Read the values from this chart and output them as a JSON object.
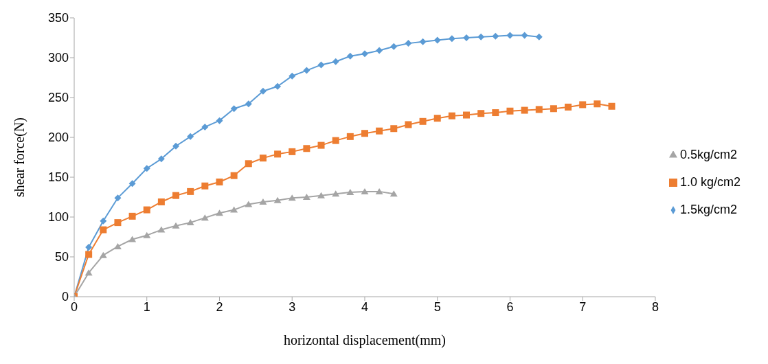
{
  "chart_data": {
    "type": "line",
    "xlabel": "horizontal displacement(mm)",
    "ylabel": "shear force(N)",
    "xlim": [
      0,
      8
    ],
    "xticks": [
      0,
      1,
      2,
      3,
      4,
      5,
      6,
      7,
      8
    ],
    "ylim": [
      0,
      350
    ],
    "yticks": [
      0,
      50,
      100,
      150,
      200,
      250,
      300,
      350
    ],
    "grid": false,
    "legend": "right",
    "series": [
      {
        "name": "1.5kg/cm2",
        "color": "#5b9bd5",
        "marker": "diamond",
        "x": [
          0,
          0.2,
          0.4,
          0.6,
          0.8,
          1,
          1.2,
          1.4,
          1.6,
          1.8,
          2,
          2.2,
          2.4,
          2.6,
          2.8,
          3,
          3.2,
          3.4,
          3.6,
          3.8,
          4,
          4.2,
          4.4,
          4.6,
          4.8,
          5,
          5.2,
          5.4,
          5.6,
          5.8,
          6,
          6.2,
          6.4
        ],
        "values": [
          0,
          62,
          95,
          124,
          142,
          161,
          173,
          189,
          201,
          213,
          221,
          236,
          242,
          258,
          264,
          277,
          284,
          291,
          295,
          302,
          305,
          309,
          314,
          318,
          320,
          322,
          324,
          325,
          326,
          327,
          328,
          328,
          326
        ]
      },
      {
        "name": "1.0 kg/cm2",
        "color": "#ed7d31",
        "marker": "square",
        "x": [
          0,
          0.2,
          0.4,
          0.6,
          0.8,
          1,
          1.2,
          1.4,
          1.6,
          1.8,
          2,
          2.2,
          2.4,
          2.6,
          2.8,
          3,
          3.2,
          3.4,
          3.6,
          3.8,
          4,
          4.2,
          4.4,
          4.6,
          4.8,
          5,
          5.2,
          5.4,
          5.6,
          5.8,
          6,
          6.2,
          6.4,
          6.6,
          6.8,
          7,
          7.2,
          7.4
        ],
        "values": [
          0,
          53,
          84,
          93,
          101,
          109,
          119,
          127,
          132,
          139,
          144,
          152,
          167,
          174,
          179,
          182,
          186,
          190,
          196,
          201,
          205,
          208,
          211,
          216,
          220,
          224,
          227,
          228,
          230,
          231,
          233,
          234,
          235,
          236,
          238,
          241,
          242,
          239
        ]
      },
      {
        "name": "0.5kg/cm2",
        "color": "#a5a5a5",
        "marker": "triangle",
        "x": [
          0,
          0.2,
          0.4,
          0.6,
          0.8,
          1,
          1.2,
          1.4,
          1.6,
          1.8,
          2,
          2.2,
          2.4,
          2.6,
          2.8,
          3,
          3.2,
          3.4,
          3.6,
          3.8,
          4,
          4.2,
          4.4
        ],
        "values": [
          0,
          30,
          52,
          63,
          72,
          77,
          84,
          89,
          93,
          99,
          105,
          109,
          116,
          119,
          121,
          124,
          125,
          127,
          129,
          131,
          132,
          132,
          129
        ]
      }
    ]
  }
}
